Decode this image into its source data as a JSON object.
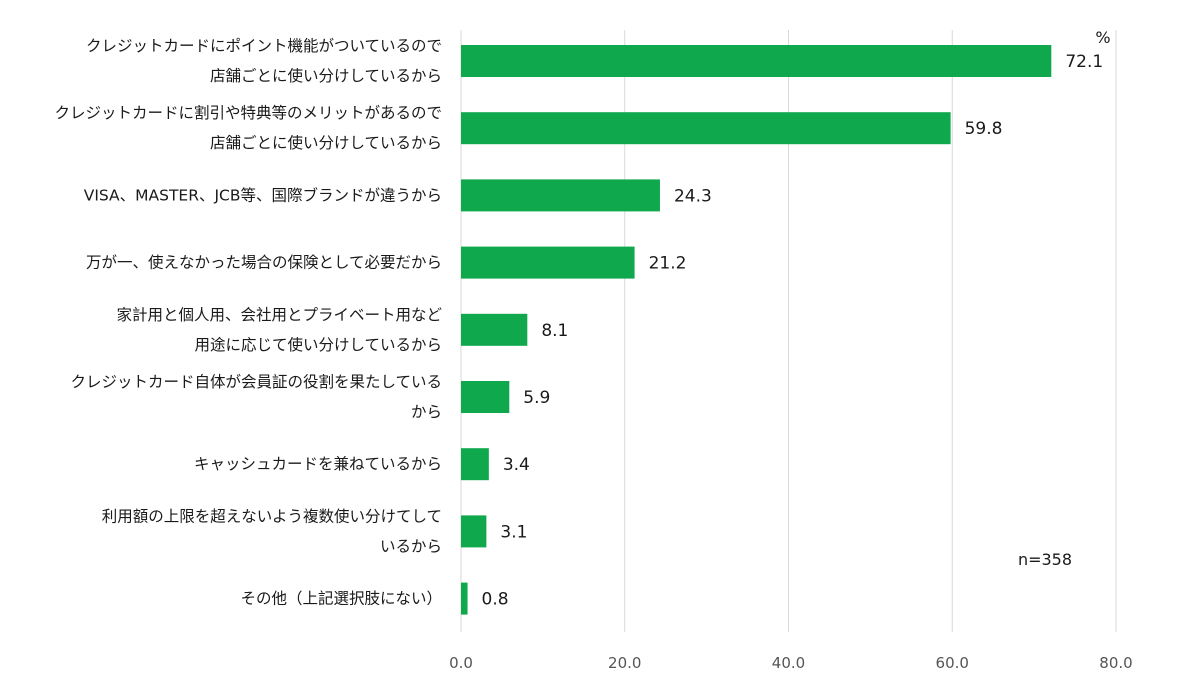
{
  "chart_data": {
    "type": "bar",
    "orientation": "horizontal",
    "unit": "%",
    "note": "n=358",
    "bar_color": "#0fa84c",
    "grid": true,
    "xlim": [
      0,
      80
    ],
    "xticks": [
      "0.0",
      "20.0",
      "40.0",
      "60.0",
      "80.0"
    ],
    "categories": [
      [
        "クレジットカードにポイント機能がついているので",
        "店舗ごとに使い分けしているから"
      ],
      [
        "クレジットカードに割引や特典等のメリットがあるので",
        "店舗ごとに使い分けしているから"
      ],
      [
        "VISA、MASTER、JCB等、国際ブランドが違うから"
      ],
      [
        "万が一、使えなかった場合の保険として必要だから"
      ],
      [
        "家計用と個人用、会社用とプライベート用など",
        "用途に応じて使い分けしているから"
      ],
      [
        "クレジットカード自体が会員証の役割を果たしている",
        "から"
      ],
      [
        "キャッシュカードを兼ねているから"
      ],
      [
        "利用額の上限を超えないよう複数使い分けてして",
        "いるから"
      ],
      [
        "その他（上記選択肢にない）"
      ]
    ],
    "values": [
      72.1,
      59.8,
      24.3,
      21.2,
      8.1,
      5.9,
      3.4,
      3.1,
      0.8
    ],
    "value_labels": [
      "72.1",
      "59.8",
      "24.3",
      "21.2",
      "8.1",
      "5.9",
      "3.4",
      "3.1",
      "0.8"
    ]
  }
}
